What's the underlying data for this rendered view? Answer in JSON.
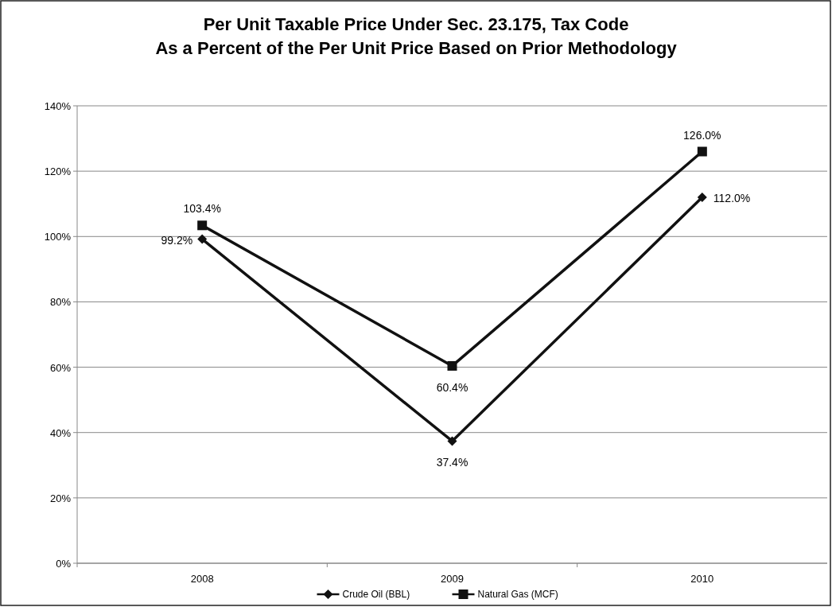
{
  "chart_data": {
    "type": "line",
    "title": "Per Unit Taxable Price Under Sec. 23.175, Tax Code\nAs a Percent of the Per Unit Price Based on Prior Methodology",
    "categories": [
      "2008",
      "2009",
      "2010"
    ],
    "series": [
      {
        "name": "Crude Oil (BBL)",
        "color": "#111111",
        "marker": "diamond",
        "values": [
          99.2,
          37.4,
          112.0
        ],
        "value_labels": [
          "99.2%",
          "37.4%",
          "112.0%"
        ]
      },
      {
        "name": "Natural Gas (MCF)",
        "color": "#111111",
        "marker": "square",
        "values": [
          103.4,
          60.4,
          126.0
        ],
        "value_labels": [
          "103.4%",
          "60.4%",
          "126.0%"
        ]
      }
    ],
    "ylim": [
      0,
      140
    ],
    "yticks": [
      {
        "value": 0,
        "label": "0%"
      },
      {
        "value": 20,
        "label": "20%"
      },
      {
        "value": 40,
        "label": "40%"
      },
      {
        "value": 60,
        "label": "60%"
      },
      {
        "value": 80,
        "label": "80%"
      },
      {
        "value": 100,
        "label": "100%"
      },
      {
        "value": 120,
        "label": "120%"
      },
      {
        "value": 140,
        "label": "140%"
      }
    ],
    "grid": "y",
    "legend": "bottom",
    "line_style": "solid"
  }
}
